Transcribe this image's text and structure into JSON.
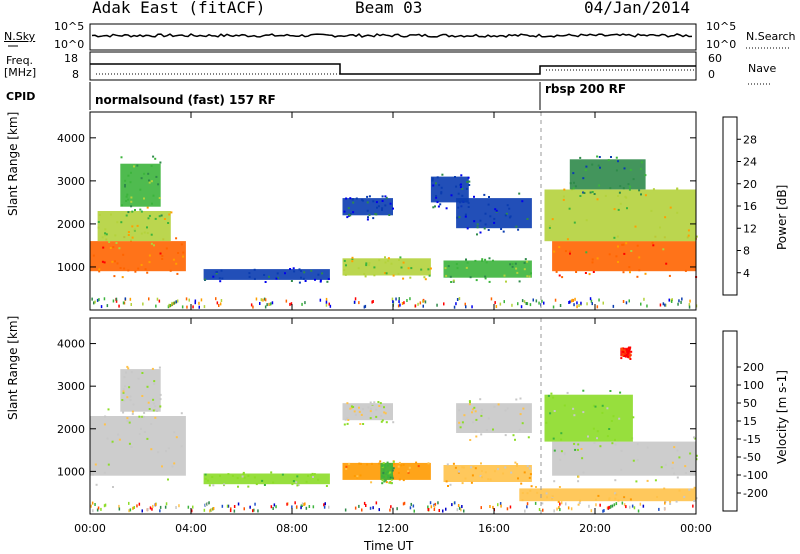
{
  "header": {
    "station": "Adak East (fitACF)",
    "beam": "Beam 03",
    "date": "04/Jan/2014"
  },
  "panel_nsky": {
    "left_label": "N.Sky",
    "left_ticks": [
      "10^5",
      "10^0"
    ],
    "right_label": "N.Search",
    "right_ticks": [
      "10^5",
      "10^0"
    ]
  },
  "panel_freq": {
    "left_label_1": "Freq.",
    "left_label_2": "[MHz]",
    "left_ticks": [
      "18",
      "8"
    ],
    "right_label": "Nave",
    "right_ticks": [
      "60",
      "0"
    ]
  },
  "panel_cpid": {
    "label": "CPID",
    "program_1": "normalsound (fast) 157 RF",
    "program_2": "rbsp 200 RF"
  },
  "colors": {
    "power": [
      "#0000ee",
      "#0a3cb0",
      "#2f8a4a",
      "#3cb43c",
      "#b4d23c",
      "#ffa000",
      "#ff6400",
      "#ff0000"
    ],
    "velocity": [
      "#ff0000",
      "#ff5000",
      "#ff9a00",
      "#ffc24a",
      "#c8c8c8",
      "#8cdc28",
      "#3cb43c",
      "#2f8a4a",
      "#1e50c8",
      "#0000c8"
    ]
  },
  "chart_data": [
    {
      "type": "heatmap",
      "quantity": "Power",
      "ylabel": "Slant Range [km]",
      "xlabel": "Time UT",
      "ylim": [
        0,
        4600
      ],
      "yticks": [
        1000,
        2000,
        3000,
        4000
      ],
      "x_tick_labels": [
        "00:00",
        "04:00",
        "08:00",
        "12:00",
        "16:00",
        "20:00",
        "00:00"
      ],
      "colorbar_label": "Power [dB]",
      "colorbar_ticks": [
        "4",
        "8",
        "12",
        "16",
        "20",
        "24",
        "28"
      ],
      "regions": [
        {
          "t0": 0.0,
          "t1": 3.8,
          "r0": 900,
          "r1": 1600,
          "level": 6
        },
        {
          "t0": 0.3,
          "t1": 3.2,
          "r0": 1600,
          "r1": 2300,
          "level": 4
        },
        {
          "t0": 1.2,
          "t1": 2.8,
          "r0": 2400,
          "r1": 3400,
          "level": 3
        },
        {
          "t0": 4.5,
          "t1": 9.5,
          "r0": 700,
          "r1": 950,
          "level": 1
        },
        {
          "t0": 10.0,
          "t1": 13.5,
          "r0": 800,
          "r1": 1200,
          "level": 4
        },
        {
          "t0": 14.0,
          "t1": 17.5,
          "r0": 750,
          "r1": 1150,
          "level": 3
        },
        {
          "t0": 10.0,
          "t1": 12.0,
          "r0": 2200,
          "r1": 2600,
          "level": 1
        },
        {
          "t0": 13.5,
          "t1": 15.0,
          "r0": 2500,
          "r1": 3100,
          "level": 1
        },
        {
          "t0": 14.5,
          "t1": 17.5,
          "r0": 1900,
          "r1": 2600,
          "level": 1
        },
        {
          "t0": 18.3,
          "t1": 24.0,
          "r0": 900,
          "r1": 1600,
          "level": 6
        },
        {
          "t0": 18.0,
          "t1": 24.0,
          "r0": 1600,
          "r1": 2800,
          "level": 4
        },
        {
          "t0": 19.0,
          "t1": 22.0,
          "r0": 2800,
          "r1": 3500,
          "level": 2
        }
      ]
    },
    {
      "type": "heatmap",
      "quantity": "Velocity",
      "ylabel": "Slant Range [km]",
      "xlabel": "Time UT",
      "ylim": [
        0,
        4600
      ],
      "yticks": [
        1000,
        2000,
        3000,
        4000
      ],
      "x_tick_labels": [
        "00:00",
        "04:00",
        "08:00",
        "12:00",
        "16:00",
        "20:00",
        "00:00"
      ],
      "colorbar_label": "Velocity [m s-1]",
      "colorbar_ticks": [
        "-200",
        "-100",
        "-50",
        "-15",
        "15",
        "50",
        "100",
        "200"
      ],
      "regions": [
        {
          "t0": 0.0,
          "t1": 3.8,
          "r0": 900,
          "r1": 2300,
          "level": 4
        },
        {
          "t0": 1.2,
          "t1": 2.8,
          "r0": 2400,
          "r1": 3400,
          "level": 4
        },
        {
          "t0": 4.5,
          "t1": 9.5,
          "r0": 700,
          "r1": 950,
          "level": 5
        },
        {
          "t0": 10.0,
          "t1": 13.5,
          "r0": 800,
          "r1": 1200,
          "level": 2
        },
        {
          "t0": 11.5,
          "t1": 12.0,
          "r0": 800,
          "r1": 1200,
          "level": 6
        },
        {
          "t0": 14.0,
          "t1": 17.5,
          "r0": 750,
          "r1": 1150,
          "level": 3
        },
        {
          "t0": 10.0,
          "t1": 12.0,
          "r0": 2200,
          "r1": 2600,
          "level": 4
        },
        {
          "t0": 14.5,
          "t1": 17.5,
          "r0": 1900,
          "r1": 2600,
          "level": 4
        },
        {
          "t0": 18.3,
          "t1": 24.0,
          "r0": 900,
          "r1": 1700,
          "level": 4
        },
        {
          "t0": 18.0,
          "t1": 21.5,
          "r0": 1700,
          "r1": 2800,
          "level": 5
        },
        {
          "t0": 17.0,
          "t1": 24.0,
          "r0": 300,
          "r1": 600,
          "level": 3
        },
        {
          "t0": 21.0,
          "t1": 21.4,
          "r0": 3700,
          "r1": 3900,
          "level": 0
        }
      ]
    }
  ]
}
